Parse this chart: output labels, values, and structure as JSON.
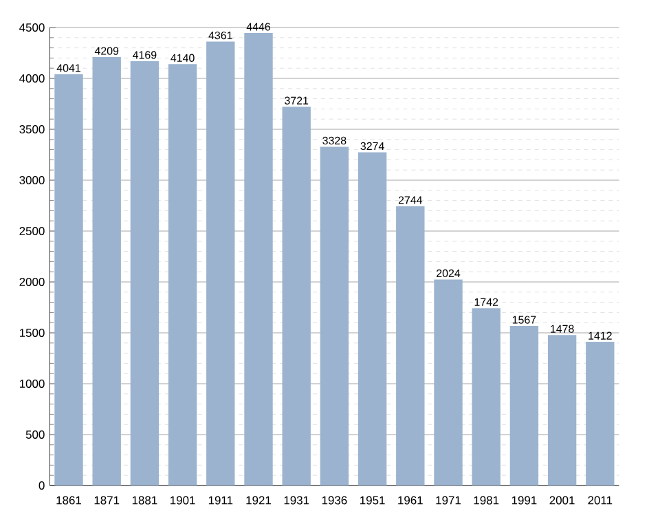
{
  "chart_data": {
    "type": "bar",
    "categories": [
      "1861",
      "1871",
      "1881",
      "1901",
      "1911",
      "1921",
      "1931",
      "1936",
      "1951",
      "1961",
      "1971",
      "1981",
      "1991",
      "2001",
      "2011"
    ],
    "values": [
      4041,
      4209,
      4169,
      4140,
      4361,
      4446,
      3721,
      3328,
      3274,
      2744,
      2024,
      1742,
      1567,
      1478,
      1412
    ],
    "color": "#9bb3cf",
    "ylim": [
      0,
      4500
    ],
    "yticks": [
      0,
      500,
      1000,
      1500,
      2000,
      2500,
      3000,
      3500,
      4000,
      4500
    ],
    "grid": "y",
    "data_labels": true
  }
}
